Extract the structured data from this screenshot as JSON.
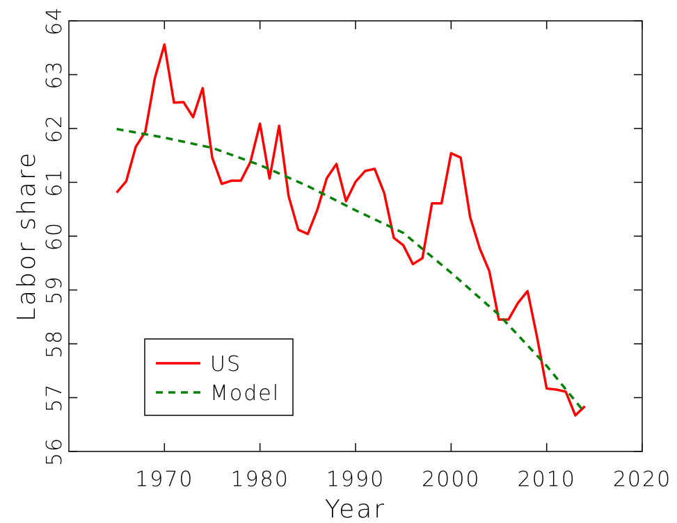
{
  "chart_data": {
    "type": "line",
    "xlabel": "Year",
    "ylabel": "Labor share",
    "xlim": [
      1960,
      2020
    ],
    "xticks": [
      1970,
      1980,
      1990,
      2000,
      2010,
      2020
    ],
    "ylim": [
      56,
      64
    ],
    "yticks": [
      56,
      57,
      58,
      59,
      60,
      61,
      62,
      63,
      64
    ],
    "legend": "lower left",
    "series": [
      {
        "name": "US",
        "color": "#ff0000",
        "dashed": false,
        "x": [
          1965,
          1966,
          1967,
          1968,
          1969,
          1970,
          1971,
          1972,
          1973,
          1974,
          1975,
          1976,
          1977,
          1978,
          1979,
          1980,
          1981,
          1982,
          1983,
          1984,
          1985,
          1986,
          1987,
          1988,
          1989,
          1990,
          1991,
          1992,
          1993,
          1994,
          1995,
          1996,
          1997,
          1998,
          1999,
          2000,
          2001,
          2002,
          2003,
          2004,
          2005,
          2006,
          2007,
          2008,
          2009,
          2010,
          2011,
          2012,
          2013,
          2014
        ],
        "values": [
          60.81,
          61.02,
          61.66,
          61.94,
          62.94,
          63.56,
          62.48,
          62.49,
          62.21,
          62.75,
          61.46,
          60.97,
          61.03,
          61.03,
          61.38,
          62.09,
          61.07,
          62.05,
          60.74,
          60.12,
          60.04,
          60.49,
          61.08,
          61.34,
          60.65,
          61.01,
          61.21,
          61.25,
          60.8,
          59.97,
          59.83,
          59.48,
          59.59,
          60.61,
          60.61,
          61.54,
          61.46,
          60.35,
          59.77,
          59.35,
          58.45,
          58.45,
          58.76,
          58.98,
          58.12,
          57.17,
          57.15,
          57.11,
          56.67,
          56.84
        ]
      },
      {
        "name": "Model",
        "color": "#008000",
        "dashed": true,
        "x": [
          1965,
          1970,
          1975,
          1980,
          1985,
          1990,
          1995,
          2000,
          2005,
          2010,
          2014
        ],
        "values": [
          61.99,
          61.83,
          61.64,
          61.32,
          60.93,
          60.48,
          60.06,
          59.32,
          58.54,
          57.59,
          56.72
        ]
      }
    ]
  }
}
